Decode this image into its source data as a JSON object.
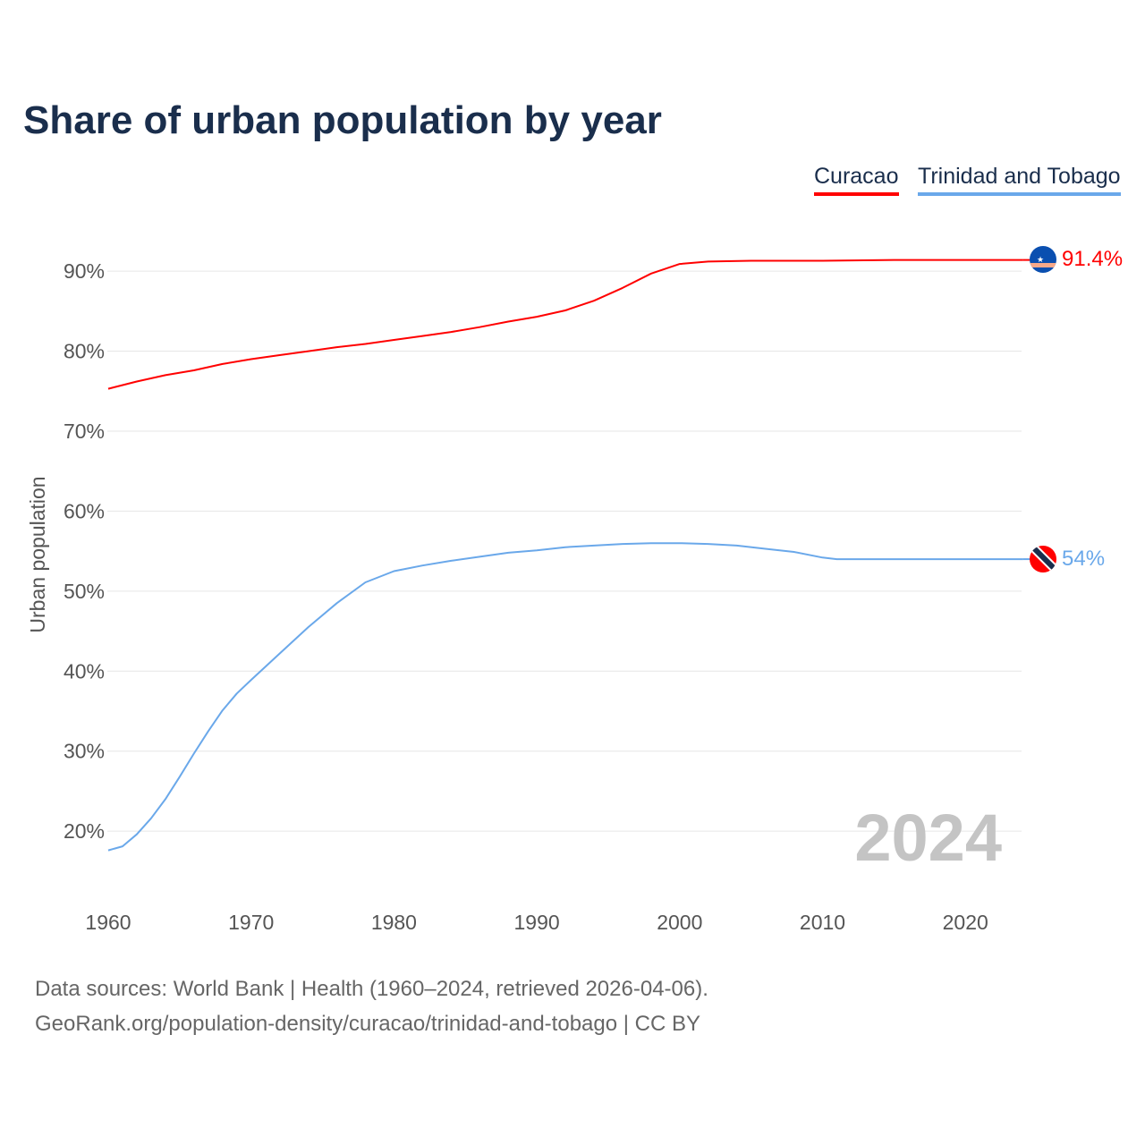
{
  "title": "Share of urban population by year",
  "legend": [
    "Curacao",
    "Trinidad and Tobago"
  ],
  "year_watermark": "2024",
  "footer": {
    "line1": "Data sources: World Bank | Health (1960–2024, retrieved 2026-04-06).",
    "line2": "GeoRank.org/population-density/curacao/trinidad-and-tobago | CC BY"
  },
  "chart_data": {
    "type": "line",
    "title": "Share of urban population by year",
    "ylabel": "Urban population",
    "xlabel": "",
    "xlim": [
      1960,
      2024
    ],
    "ylim": [
      0,
      100
    ],
    "xticks": [
      1960,
      1970,
      1980,
      1990,
      2000,
      2010,
      2020
    ],
    "yticks": [
      20,
      30,
      40,
      50,
      60,
      70,
      80,
      90
    ],
    "ytick_labels": [
      "20%",
      "30%",
      "40%",
      "50%",
      "60%",
      "70%",
      "80%",
      "90%"
    ],
    "grid": true,
    "legend_position": "top-right",
    "series": [
      {
        "name": "Curacao",
        "color": "#ff0000",
        "end_label": "91.4%",
        "x": [
          1960,
          1962,
          1964,
          1966,
          1968,
          1970,
          1972,
          1974,
          1976,
          1978,
          1980,
          1982,
          1984,
          1986,
          1988,
          1990,
          1992,
          1994,
          1996,
          1998,
          2000,
          2002,
          2005,
          2010,
          2015,
          2018,
          2024
        ],
        "y": [
          75.3,
          76.2,
          77.0,
          77.6,
          78.4,
          79.0,
          79.5,
          80.0,
          80.5,
          80.9,
          81.4,
          81.9,
          82.4,
          83.0,
          83.7,
          84.3,
          85.1,
          86.3,
          87.9,
          89.7,
          90.9,
          91.2,
          91.3,
          91.3,
          91.4,
          91.4,
          91.4
        ]
      },
      {
        "name": "Trinidad and Tobago",
        "color": "#6aa8ea",
        "end_label": "54%",
        "x": [
          1960,
          1961,
          1962,
          1963,
          1964,
          1965,
          1966,
          1967,
          1968,
          1969,
          1970,
          1972,
          1974,
          1976,
          1978,
          1980,
          1982,
          1984,
          1986,
          1988,
          1990,
          1992,
          1994,
          1996,
          1998,
          2000,
          2002,
          2004,
          2006,
          2008,
          2010,
          2011,
          2024
        ],
        "y": [
          17.6,
          18.1,
          19.6,
          21.6,
          24.0,
          26.8,
          29.7,
          32.5,
          35.1,
          37.2,
          38.9,
          42.2,
          45.5,
          48.5,
          51.1,
          52.5,
          53.2,
          53.8,
          54.3,
          54.8,
          55.1,
          55.5,
          55.7,
          55.9,
          56.0,
          56.0,
          55.9,
          55.7,
          55.3,
          54.9,
          54.2,
          54.0,
          54.0
        ]
      }
    ]
  }
}
